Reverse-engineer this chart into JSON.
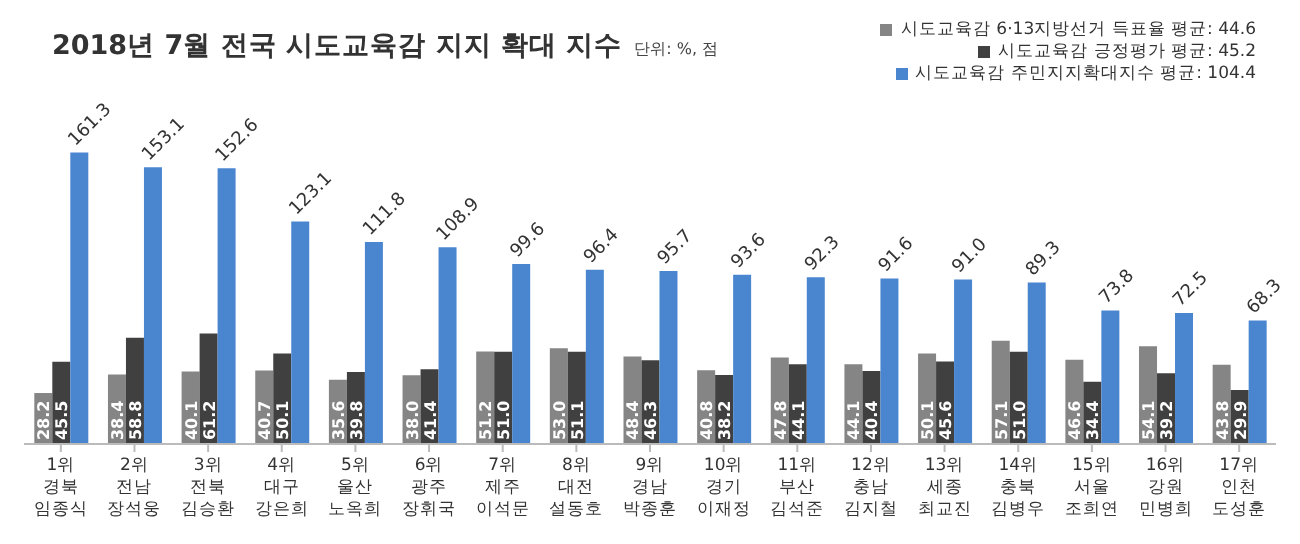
{
  "chart_data": {
    "type": "bar",
    "title": "2018년 7월 전국 시도교육감 지지 확대 지수",
    "subtitle": "단위: %, 점",
    "categories": [
      "1위\n경북\n임종식",
      "2위\n전남\n장석웅",
      "3위\n전북\n김승환",
      "4위\n대구\n강은희",
      "5위\n울산\n노옥희",
      "6위\n광주\n장휘국",
      "7위\n제주\n이석문",
      "8위\n대전\n설동호",
      "9위\n경남\n박종훈",
      "10위\n경기\n이재정",
      "11위\n부산\n김석준",
      "12위\n충남\n김지철",
      "13위\n세종\n최교진",
      "14위\n충북\n김병우",
      "15위\n서울\n조희연",
      "16위\n강원\n민병희",
      "17위\n인천\n도성훈"
    ],
    "series": [
      {
        "name": "시도교육감 6·13지방선거 득표율 평균: 44.6",
        "color": "#858585",
        "values": [
          28.2,
          38.4,
          40.1,
          40.7,
          35.6,
          38.0,
          51.2,
          53.0,
          48.4,
          40.8,
          47.8,
          44.1,
          50.1,
          57.1,
          46.6,
          54.1,
          43.8
        ],
        "value_labels": [
          "28.2",
          "38.4",
          "40.1",
          "40.7",
          "35.6",
          "38.0",
          "51.2",
          "53.0",
          "48.4",
          "40.8",
          "47.8",
          "44.1",
          "50.1",
          "57.1",
          "46.6",
          "54.1",
          "43.8"
        ]
      },
      {
        "name": "시도교육감 긍정평가 평균: 45.2",
        "color": "#404040",
        "values": [
          45.5,
          58.8,
          61.2,
          50.1,
          39.8,
          41.4,
          51.0,
          51.1,
          46.3,
          38.2,
          44.1,
          40.4,
          45.6,
          51.0,
          34.4,
          39.2,
          29.9
        ],
        "value_labels": [
          "45.5",
          "58.8",
          "61.2",
          "50.1",
          "39.8",
          "41.4",
          "51.0",
          "51.1",
          "46.3",
          "38.2",
          "44.1",
          "40.4",
          "45.6",
          "51.0",
          "34.4",
          "39.2",
          "29.9"
        ]
      },
      {
        "name": "시도교육감 주민지지확대지수 평균: 104.4",
        "color": "#4a86d0",
        "values": [
          161.3,
          153.1,
          152.6,
          123.1,
          111.8,
          108.9,
          99.6,
          96.4,
          95.7,
          93.6,
          92.3,
          91.6,
          91.0,
          89.3,
          73.8,
          72.5,
          68.3
        ],
        "value_labels": [
          "161.3",
          "153.1",
          "152.6",
          "123.1",
          "111.8",
          "108.9",
          "99.6",
          "96.4",
          "95.7",
          "93.6",
          "92.3",
          "91.6",
          "91.0",
          "89.3",
          "73.8",
          "72.5",
          "68.3"
        ]
      }
    ],
    "legend": "top right"
  }
}
